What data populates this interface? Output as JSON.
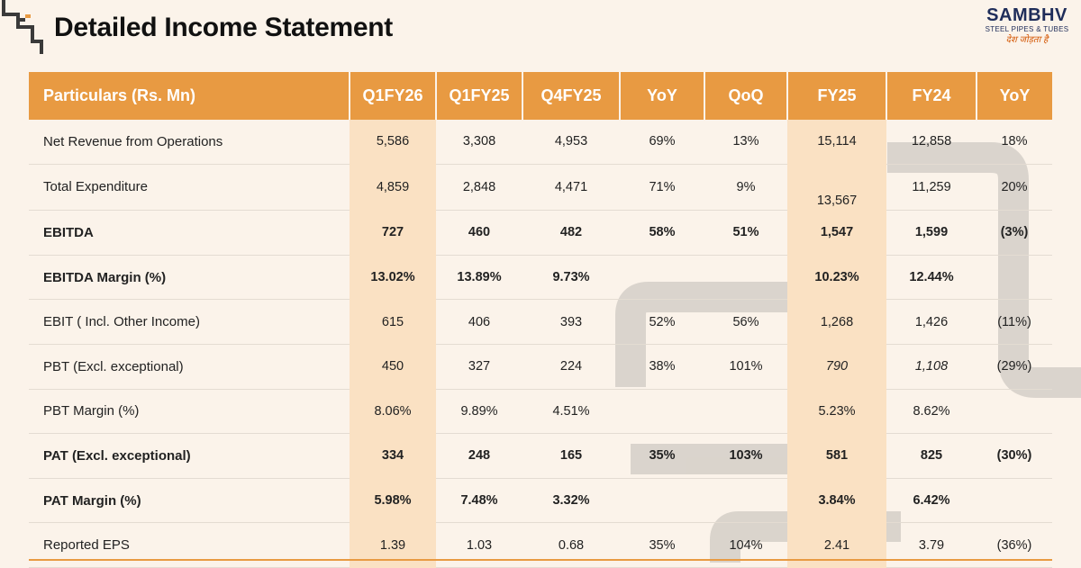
{
  "header": {
    "title": "Detailed Income Statement",
    "logo": {
      "name": "SAMBHV",
      "subtitle": "STEEL PIPES & TUBES",
      "tagline": "देश जोड़ता है"
    }
  },
  "table": {
    "columns": [
      "Particulars (Rs. Mn)",
      "Q1FY26",
      "Q1FY25",
      "Q4FY25",
      "YoY",
      "QoQ",
      "FY25",
      "FY24",
      "YoY"
    ],
    "rows": [
      {
        "label": "Net Revenue from Operations",
        "bold": false,
        "values": [
          "5,586",
          "3,308",
          "4,953",
          "69%",
          "13%",
          "15,114",
          "12,858",
          "18%"
        ]
      },
      {
        "label": "Total Expenditure",
        "bold": false,
        "values": [
          "4,859",
          "2,848",
          "4,471",
          "71%",
          "9%",
          "13,567",
          "11,259",
          "20%"
        ]
      },
      {
        "label": "EBITDA",
        "bold": true,
        "values": [
          "727",
          "460",
          "482",
          "58%",
          "51%",
          "1,547",
          "1,599",
          "(3%)"
        ]
      },
      {
        "label": "EBITDA Margin (%)",
        "bold": true,
        "values": [
          "13.02%",
          "13.89%",
          "9.73%",
          "",
          "",
          "10.23%",
          "12.44%",
          ""
        ]
      },
      {
        "label": "EBIT ( Incl. Other Income)",
        "bold": false,
        "values": [
          "615",
          "406",
          "393",
          "52%",
          "56%",
          "1,268",
          "1,426",
          "(11%)"
        ]
      },
      {
        "label": "PBT (Excl. exceptional)",
        "bold": false,
        "values": [
          "450",
          "327",
          "224",
          "38%",
          "101%",
          "790",
          "1,108",
          "(29%)"
        ]
      },
      {
        "label": "PBT Margin (%)",
        "bold": false,
        "values": [
          "8.06%",
          "9.89%",
          "4.51%",
          "",
          "",
          "5.23%",
          "8.62%",
          ""
        ]
      },
      {
        "label": "PAT (Excl. exceptional)",
        "bold": true,
        "values": [
          "334",
          "248",
          "165",
          "35%",
          "103%",
          "581",
          "825",
          "(30%)"
        ]
      },
      {
        "label": "PAT Margin (%)",
        "bold": true,
        "values": [
          "5.98%",
          "7.48%",
          "3.32%",
          "",
          "",
          "3.84%",
          "6.42%",
          ""
        ]
      },
      {
        "label": "Reported EPS",
        "bold": false,
        "values": [
          "1.39",
          "1.03",
          "0.68",
          "35%",
          "104%",
          "2.41",
          "3.79",
          "(36%)"
        ]
      }
    ]
  },
  "colors": {
    "header_bg": "#e89a42",
    "highlight_col": "#fae1c3",
    "background": "#fbf3ea",
    "brand_navy": "#1f2d5a",
    "brand_orange": "#d35400"
  }
}
